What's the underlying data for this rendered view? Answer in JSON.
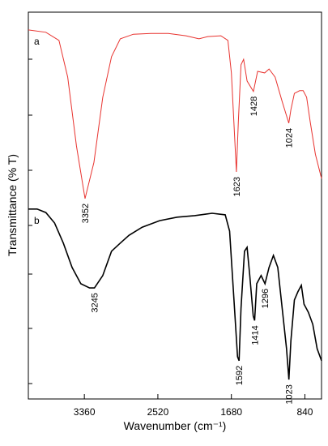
{
  "chart_data": {
    "type": "line",
    "xlabel": "Wavenumber (cm⁻¹)",
    "ylabel": "Transmittance (% T)",
    "xlim": [
      4000,
      650
    ],
    "xticks": [
      3360,
      2520,
      1680,
      840
    ],
    "ylim": [
      0,
      100
    ],
    "series": [
      {
        "name": "a",
        "color": "#e8332f",
        "x": [
          4000,
          3800,
          3650,
          3550,
          3450,
          3352,
          3250,
          3150,
          3050,
          2950,
          2800,
          2600,
          2400,
          2200,
          2050,
          1950,
          1800,
          1720,
          1680,
          1623,
          1600,
          1570,
          1540,
          1500,
          1428,
          1380,
          1300,
          1250,
          1180,
          1100,
          1024,
          1000,
          960,
          900,
          860,
          820,
          780,
          720,
          650
        ],
        "values": [
          95.4,
          94.8,
          92.7,
          83.2,
          65.4,
          51.8,
          61.2,
          78.0,
          88.5,
          93.1,
          94.3,
          94.5,
          94.5,
          93.9,
          93.1,
          93.7,
          93.9,
          92.7,
          84.3,
          58.7,
          71.7,
          86.4,
          87.8,
          82.2,
          79.5,
          84.7,
          84.3,
          85.3,
          83.2,
          76.9,
          71.3,
          74.8,
          79.0,
          79.7,
          79.7,
          78.0,
          71.7,
          63.3,
          57.0
        ],
        "peaks": [
          3352,
          1623,
          1428,
          1024
        ]
      },
      {
        "name": "b",
        "color": "#000000",
        "x": [
          4000,
          3900,
          3800,
          3700,
          3600,
          3500,
          3400,
          3300,
          3245,
          3150,
          3050,
          2950,
          2850,
          2700,
          2500,
          2300,
          2100,
          1900,
          1750,
          1700,
          1650,
          1610,
          1592,
          1570,
          1530,
          1500,
          1470,
          1430,
          1414,
          1390,
          1340,
          1296,
          1250,
          1200,
          1150,
          1100,
          1050,
          1023,
          1000,
          960,
          920,
          880,
          850,
          800,
          750,
          700,
          650
        ],
        "values": [
          49.1,
          49.1,
          48.2,
          45.5,
          40.3,
          34.0,
          29.8,
          28.7,
          28.7,
          31.9,
          38.2,
          40.3,
          42.3,
          44.4,
          46.1,
          47.0,
          47.4,
          48.0,
          47.6,
          43.4,
          25.6,
          10.9,
          9.9,
          23.5,
          38.2,
          39.2,
          31.9,
          21.4,
          20.3,
          29.8,
          31.9,
          29.8,
          34.0,
          37.1,
          34.0,
          23.5,
          13.0,
          5.0,
          15.1,
          25.6,
          27.7,
          29.4,
          24.5,
          22.4,
          19.3,
          13.0,
          9.9
        ],
        "peaks": [
          3245,
          1592,
          1414,
          1296,
          1023
        ]
      }
    ]
  }
}
